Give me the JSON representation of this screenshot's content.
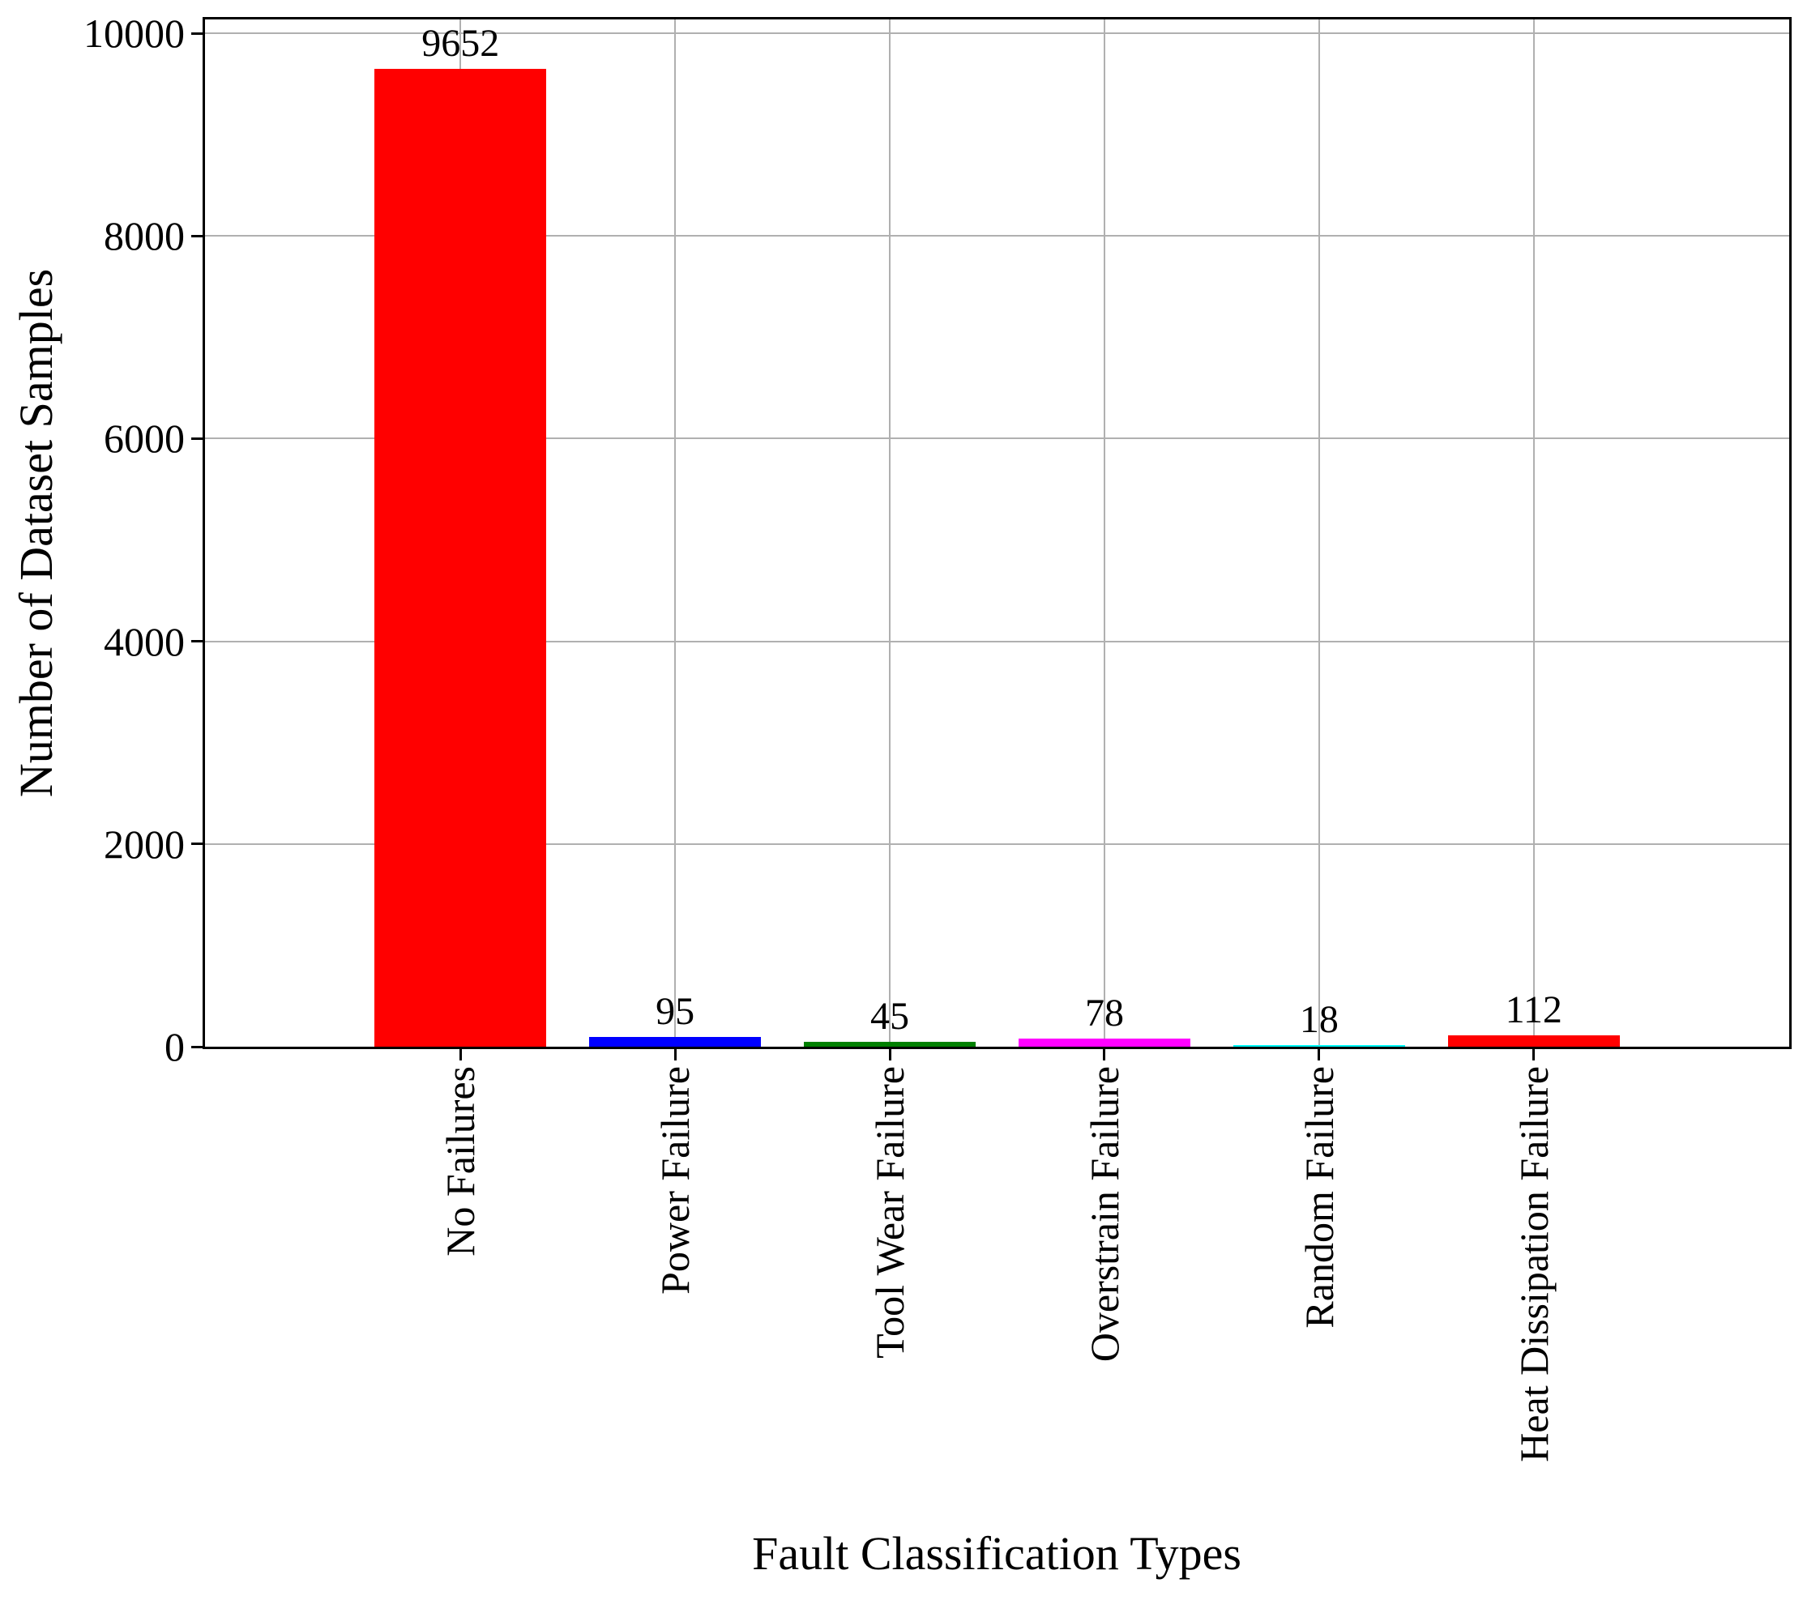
{
  "chart_data": {
    "type": "bar",
    "title": "",
    "xlabel": "Fault Classification Types",
    "ylabel": "Number of Dataset Samples",
    "categories": [
      "No Failures",
      "Power Failure",
      "Tool Wear Failure",
      "Overstrain Failure",
      "Random Failure",
      "Heat Dissipation Failure"
    ],
    "values": [
      9652,
      95,
      45,
      78,
      18,
      112
    ],
    "value_labels": [
      "9652",
      "95",
      "45",
      "78",
      "18",
      "112"
    ],
    "bar_colors": [
      "#ff0000",
      "#0000ff",
      "#008000",
      "#ff00ff",
      "#00ffff",
      "#ff0000"
    ],
    "yticks": [
      0,
      2000,
      4000,
      6000,
      8000,
      10000
    ],
    "ytick_labels": [
      "0",
      "2000",
      "4000",
      "6000",
      "8000",
      "10000"
    ],
    "ylim": [
      0,
      10136
    ],
    "grid": true,
    "grid_color": "#b0b0b0",
    "axis_color": "#000000",
    "background_color": "#ffffff",
    "legend_position": "none"
  }
}
